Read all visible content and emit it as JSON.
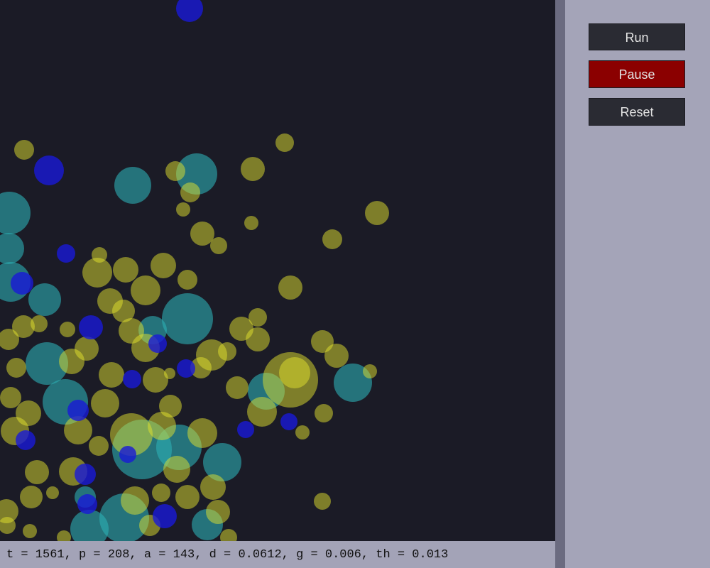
{
  "controls": {
    "buttons": [
      "Run",
      "Pause",
      "Reset"
    ]
  },
  "status": "t = 1561, p = 208, a = 143, d = 0.0612, g = 0.006, th = 0.013"
}
